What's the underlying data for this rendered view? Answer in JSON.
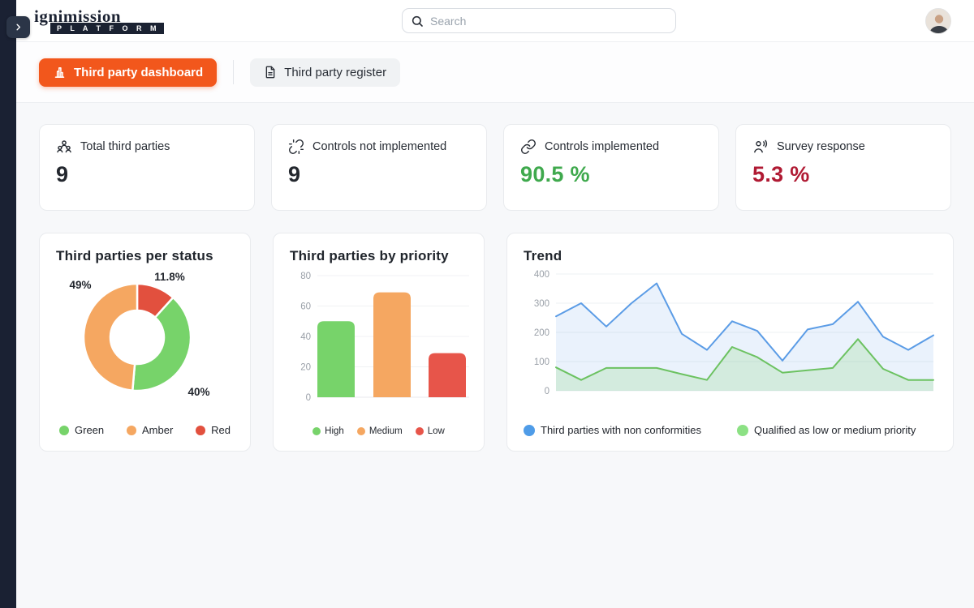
{
  "header": {
    "logo_title": "ignimission",
    "logo_subtitle": "P L A T F O R M",
    "search_placeholder": "Search"
  },
  "tabs": [
    {
      "label": "Third party dashboard",
      "active": true
    },
    {
      "label": "Third party register",
      "active": false
    }
  ],
  "stats": [
    {
      "icon": "users-icon",
      "label": "Total third parties",
      "value": "9",
      "color": "#23272e"
    },
    {
      "icon": "unlink-icon",
      "label": "Controls not implemented",
      "value": "9",
      "color": "#23272e"
    },
    {
      "icon": "link-icon",
      "label": "Controls implemented",
      "value": "90.5 %",
      "color": "#3fa94d"
    },
    {
      "icon": "voice-icon",
      "label": "Survey response",
      "value": "5.3 %",
      "color": "#b01a33"
    }
  ],
  "chart_data": [
    {
      "type": "pie",
      "title": "Third parties per status",
      "donut": true,
      "slices": [
        {
          "label": "Red",
          "value": 11.8,
          "display": "11.8%",
          "color": "#e2503e"
        },
        {
          "label": "Green",
          "value": 40,
          "display": "40%",
          "color": "#77d36a"
        },
        {
          "label": "Amber",
          "value": 49,
          "display": "49%",
          "color": "#f5a761"
        }
      ],
      "legend": [
        {
          "label": "Green",
          "color": "#77d36a"
        },
        {
          "label": "Amber",
          "color": "#f5a761"
        },
        {
          "label": "Red",
          "color": "#e2503e"
        }
      ],
      "legend_position": "bottom"
    },
    {
      "type": "bar",
      "title": "Third parties by priority",
      "categories": [
        "High",
        "Medium",
        "Low"
      ],
      "values": [
        50,
        69,
        29
      ],
      "colors": [
        "#77d36a",
        "#f5a761",
        "#e7554a"
      ],
      "ylabel": "",
      "xlabel": "",
      "ylim": [
        0,
        80
      ],
      "yticks": [
        0,
        20,
        40,
        60,
        80
      ],
      "grid": true,
      "legend_position": "bottom"
    },
    {
      "type": "area",
      "title": "Trend",
      "ylim": [
        0,
        400
      ],
      "yticks": [
        0,
        100,
        200,
        300,
        400
      ],
      "grid": true,
      "legend_position": "bottom",
      "series": [
        {
          "name": "Third parties with non conformities",
          "color": "#5b9ce6",
          "dot_color": "#4f9ce8",
          "values": [
            255,
            300,
            220,
            300,
            368,
            195,
            140,
            238,
            205,
            103,
            210,
            228,
            305,
            185,
            140,
            190
          ]
        },
        {
          "name": "Qualified as low or medium priority",
          "color": "#6cc261",
          "dot_color": "#8ce184",
          "values": [
            80,
            37,
            78,
            78,
            78,
            57,
            37,
            150,
            115,
            62,
            70,
            78,
            177,
            75,
            37,
            37
          ]
        }
      ]
    }
  ]
}
